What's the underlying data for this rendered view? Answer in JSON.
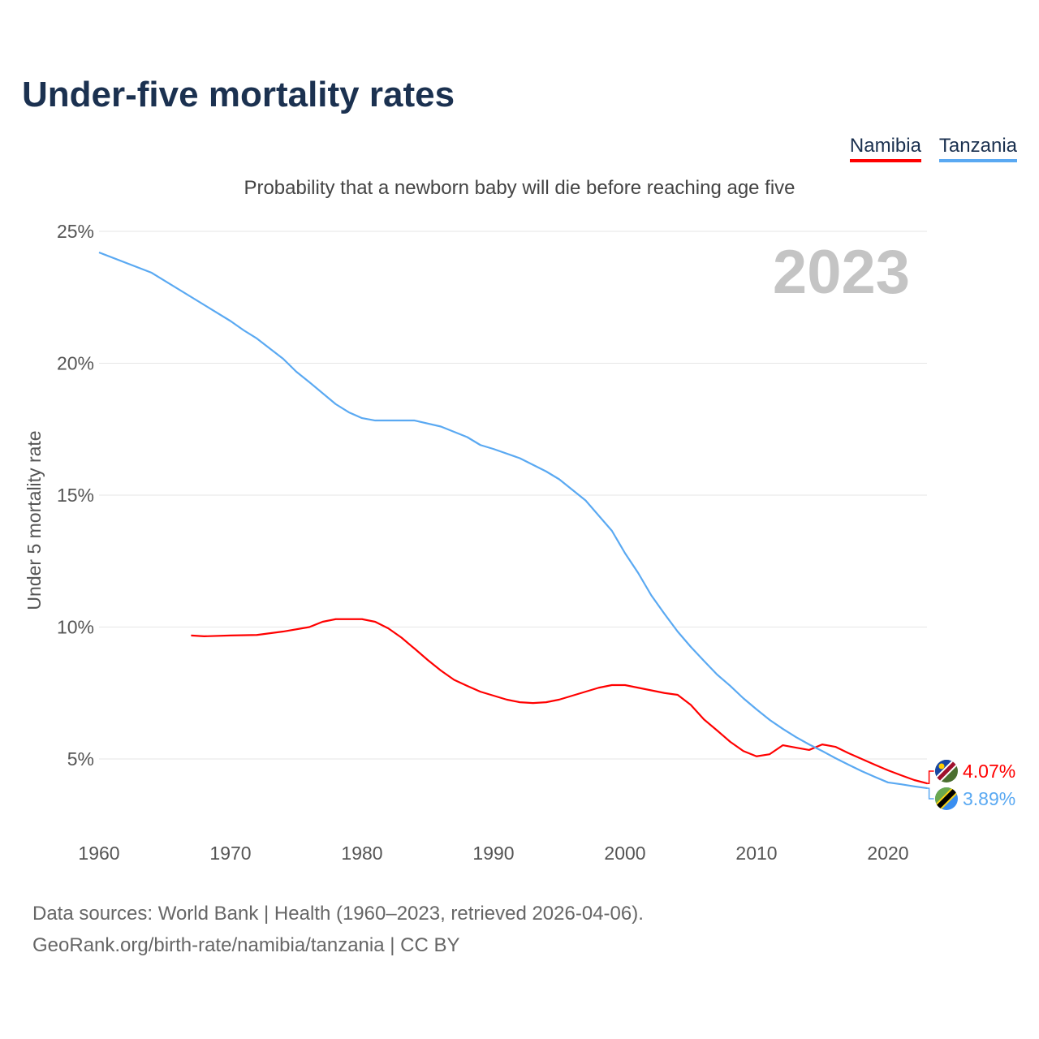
{
  "title": "Under-five mortality rates",
  "subtitle": "Probability that a newborn baby will die before reaching age five",
  "source_line1": "Data sources: World Bank | Health (1960–2023, retrieved 2026-04-06).",
  "source_line2": "GeoRank.org/birth-rate/namibia/tanzania | CC BY",
  "chart_data": {
    "type": "line",
    "title": "Under-five mortality rates",
    "subtitle": "Probability that a newborn baby will die before reaching age five",
    "xlabel": "",
    "ylabel": "Under 5 mortality rate",
    "xlim": [
      1960,
      2023
    ],
    "ylim": [
      3,
      25
    ],
    "x_ticks": [
      "1960",
      "1970",
      "1980",
      "1990",
      "2000",
      "2010",
      "2020"
    ],
    "y_ticks": [
      {
        "v": 5,
        "label": "5%"
      },
      {
        "v": 10,
        "label": "10%"
      },
      {
        "v": 15,
        "label": "15%"
      },
      {
        "v": 20,
        "label": "20%"
      },
      {
        "v": 25,
        "label": "25%"
      }
    ],
    "grid": true,
    "year_watermark": "2023",
    "legend_position": "top-right",
    "series": [
      {
        "name": "Namibia",
        "color": "#ff0000",
        "end_label": "4.07%",
        "flag": "namibia-flag",
        "points": [
          [
            1967,
            9.68
          ],
          [
            1968,
            9.65
          ],
          [
            1970,
            9.68
          ],
          [
            1972,
            9.7
          ],
          [
            1974,
            9.83
          ],
          [
            1976,
            10.0
          ],
          [
            1977,
            10.2
          ],
          [
            1978,
            10.3
          ],
          [
            1980,
            10.3
          ],
          [
            1981,
            10.2
          ],
          [
            1982,
            9.95
          ],
          [
            1983,
            9.6
          ],
          [
            1984,
            9.18
          ],
          [
            1985,
            8.75
          ],
          [
            1986,
            8.35
          ],
          [
            1987,
            8.0
          ],
          [
            1988,
            7.77
          ],
          [
            1989,
            7.55
          ],
          [
            1990,
            7.4
          ],
          [
            1991,
            7.25
          ],
          [
            1992,
            7.15
          ],
          [
            1993,
            7.12
          ],
          [
            1994,
            7.15
          ],
          [
            1995,
            7.25
          ],
          [
            1996,
            7.4
          ],
          [
            1997,
            7.55
          ],
          [
            1998,
            7.7
          ],
          [
            1999,
            7.8
          ],
          [
            2000,
            7.8
          ],
          [
            2001,
            7.7
          ],
          [
            2002,
            7.6
          ],
          [
            2003,
            7.5
          ],
          [
            2004,
            7.43
          ],
          [
            2005,
            7.05
          ],
          [
            2006,
            6.5
          ],
          [
            2007,
            6.08
          ],
          [
            2008,
            5.65
          ],
          [
            2009,
            5.3
          ],
          [
            2010,
            5.1
          ],
          [
            2011,
            5.18
          ],
          [
            2012,
            5.52
          ],
          [
            2013,
            5.43
          ],
          [
            2014,
            5.34
          ],
          [
            2015,
            5.55
          ],
          [
            2016,
            5.46
          ],
          [
            2017,
            5.22
          ],
          [
            2018,
            5.0
          ],
          [
            2019,
            4.78
          ],
          [
            2020,
            4.57
          ],
          [
            2021,
            4.38
          ],
          [
            2022,
            4.2
          ],
          [
            2023,
            4.07
          ]
        ]
      },
      {
        "name": "Tanzania",
        "color": "#5aa9f2",
        "end_label": "3.89%",
        "flag": "tanzania-flag",
        "points": [
          [
            1960,
            24.2
          ],
          [
            1964,
            23.43
          ],
          [
            1970,
            21.6
          ],
          [
            1971,
            21.25
          ],
          [
            1972,
            20.94
          ],
          [
            1974,
            20.17
          ],
          [
            1975,
            19.68
          ],
          [
            1976,
            19.28
          ],
          [
            1978,
            18.45
          ],
          [
            1979,
            18.14
          ],
          [
            1980,
            17.92
          ],
          [
            1981,
            17.83
          ],
          [
            1984,
            17.83
          ],
          [
            1986,
            17.6
          ],
          [
            1988,
            17.2
          ],
          [
            1989,
            16.9
          ],
          [
            1990,
            16.75
          ],
          [
            1992,
            16.4
          ],
          [
            1994,
            15.9
          ],
          [
            1995,
            15.6
          ],
          [
            1997,
            14.8
          ],
          [
            1999,
            13.65
          ],
          [
            2000,
            12.8
          ],
          [
            2001,
            12.05
          ],
          [
            2002,
            11.2
          ],
          [
            2003,
            10.5
          ],
          [
            2004,
            9.83
          ],
          [
            2005,
            9.25
          ],
          [
            2006,
            8.72
          ],
          [
            2007,
            8.2
          ],
          [
            2008,
            7.77
          ],
          [
            2009,
            7.3
          ],
          [
            2010,
            6.88
          ],
          [
            2011,
            6.48
          ],
          [
            2012,
            6.14
          ],
          [
            2013,
            5.83
          ],
          [
            2014,
            5.55
          ],
          [
            2015,
            5.3
          ],
          [
            2016,
            5.03
          ],
          [
            2017,
            4.78
          ],
          [
            2018,
            4.54
          ],
          [
            2019,
            4.32
          ],
          [
            2020,
            4.11
          ],
          [
            2021,
            4.04
          ],
          [
            2022,
            3.96
          ],
          [
            2023,
            3.89
          ]
        ]
      }
    ]
  }
}
